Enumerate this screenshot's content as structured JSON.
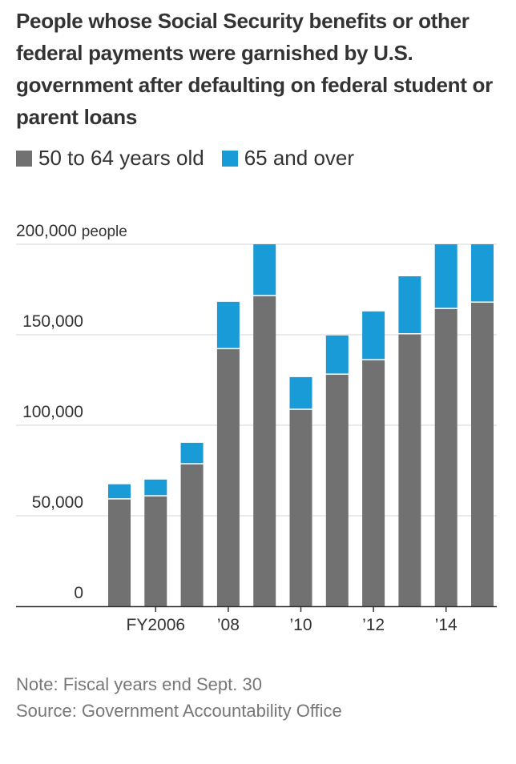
{
  "chart_data": {
    "type": "bar",
    "stacked": true,
    "title": "People whose Social Security benefits or other federal payments were garnished by U.S. government after defaulting on federal student or parent loans",
    "categories": [
      "FY2005",
      "FY2006",
      "FY2007",
      "FY2008",
      "FY2009",
      "FY2010",
      "FY2011",
      "FY2012",
      "FY2013",
      "FY2014",
      "FY2015"
    ],
    "x_tick_labels": [
      {
        "category": "FY2006",
        "label": "FY2006"
      },
      {
        "category": "FY2008",
        "label": "’08"
      },
      {
        "category": "FY2010",
        "label": "’10"
      },
      {
        "category": "FY2012",
        "label": "’12"
      },
      {
        "category": "FY2014",
        "label": "’14"
      }
    ],
    "series": [
      {
        "name": "50 to 64 years old",
        "color": "#717171",
        "values": [
          59000,
          60700,
          78400,
          142000,
          171300,
          108500,
          127900,
          135900,
          150200,
          164200,
          167700
        ]
      },
      {
        "name": "65 and over",
        "color": "#199bd7",
        "values": [
          8400,
          9300,
          11900,
          26200,
          28700,
          18100,
          21700,
          27000,
          32100,
          35800,
          32300
        ]
      }
    ],
    "ylim": [
      0,
      200000
    ],
    "clip_at_ylim_max": true,
    "y_ticks": [
      0,
      50000,
      100000,
      150000,
      200000
    ],
    "y_tick_labels": [
      "0",
      "50,000",
      "100,000",
      "150,000",
      "200,000"
    ],
    "y_unit_label": "people",
    "grid": true,
    "legend_position": "top-left",
    "xlabel": "",
    "ylabel": ""
  },
  "notes": {
    "note": "Note: Fiscal years end Sept. 30",
    "source": "Source: Government Accountability Office"
  }
}
